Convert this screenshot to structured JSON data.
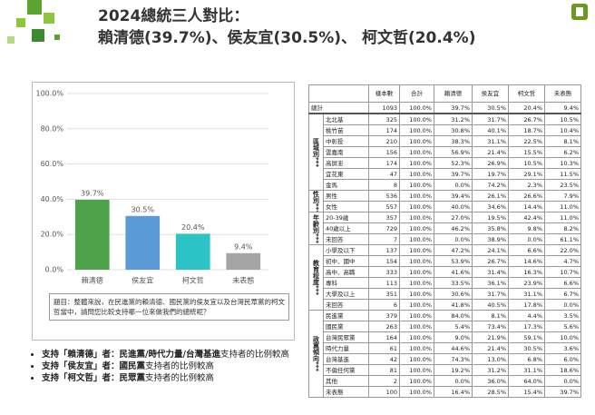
{
  "header": {
    "title_line1": "2024總統三人對比：",
    "title_line2": "賴清德(39.7%)、侯友宜(30.5%)、 柯文哲(20.4%)"
  },
  "chart_data": {
    "type": "bar",
    "categories": [
      "賴清德",
      "侯友宜",
      "柯文哲",
      "未表態"
    ],
    "values": [
      39.7,
      30.5,
      20.4,
      9.4
    ],
    "value_labels": [
      "39.7%",
      "30.5%",
      "20.4%",
      "9.4%"
    ],
    "colors": [
      "#4ea24a",
      "#5b9bd5",
      "#2cc3c6",
      "#a5a5a5"
    ],
    "ylim": [
      0,
      100
    ],
    "yticks": [
      {
        "value": 0,
        "label": "0.0%"
      },
      {
        "value": 20,
        "label": "20.0%"
      },
      {
        "value": 40,
        "label": "40.0%"
      },
      {
        "value": 60,
        "label": "60.0%"
      },
      {
        "value": 80,
        "label": "80.0%"
      },
      {
        "value": 100,
        "label": "100.0%"
      }
    ],
    "grid": true,
    "note": "題目：整體來說，在民進黨的賴清德、國民黨的侯友宜以及台灣民眾黨的柯文哲當中，請問您比較支持哪一位來做我們的總統呢？"
  },
  "table": {
    "columns": [
      "樣本數",
      "合計",
      "賴清德",
      "侯友宜",
      "柯文哲",
      "未表態"
    ],
    "total": {
      "label": "總計",
      "cells": [
        "1093",
        "100.0%",
        "39.7%",
        "30.5%",
        "20.4%",
        "9.4%"
      ]
    },
    "groups": [
      {
        "label": "區域別***",
        "rows": [
          {
            "label": "北北基",
            "cells": [
              "325",
              "100.0%",
              "31.2%",
              "31.7%",
              "26.7%",
              "10.5%"
            ]
          },
          {
            "label": "桃竹苗",
            "cells": [
              "174",
              "100.0%",
              "30.8%",
              "40.1%",
              "18.7%",
              "10.4%"
            ]
          },
          {
            "label": "中彰投",
            "cells": [
              "210",
              "100.0%",
              "38.3%",
              "31.1%",
              "22.5%",
              "8.1%"
            ]
          },
          {
            "label": "雲嘉南",
            "cells": [
              "156",
              "100.0%",
              "56.9%",
              "21.4%",
              "15.5%",
              "6.2%"
            ]
          },
          {
            "label": "高屏澎",
            "cells": [
              "174",
              "100.0%",
              "52.3%",
              "26.9%",
              "10.5%",
              "10.3%"
            ]
          },
          {
            "label": "宜花東",
            "cells": [
              "47",
              "100.0%",
              "39.7%",
              "19.7%",
              "29.1%",
              "11.5%"
            ]
          },
          {
            "label": "金馬",
            "cells": [
              "8",
              "100.0%",
              "0.0%",
              "74.2%",
              "2.3%",
              "23.5%"
            ]
          }
        ]
      },
      {
        "label": "性別***",
        "rows": [
          {
            "label": "男性",
            "cells": [
              "536",
              "100.0%",
              "39.4%",
              "26.1%",
              "26.6%",
              "7.9%"
            ]
          },
          {
            "label": "女性",
            "cells": [
              "557",
              "100.0%",
              "40.0%",
              "34.6%",
              "14.4%",
              "11.0%"
            ]
          }
        ]
      },
      {
        "label": "年齡別***",
        "rows": [
          {
            "label": "20-39歲",
            "cells": [
              "357",
              "100.0%",
              "27.0%",
              "19.5%",
              "42.4%",
              "11.0%"
            ]
          },
          {
            "label": "40歲以上",
            "cells": [
              "729",
              "100.0%",
              "46.2%",
              "35.8%",
              "9.8%",
              "8.2%"
            ]
          },
          {
            "label": "未回答",
            "cells": [
              "7",
              "100.0%",
              "0.0%",
              "38.9%",
              "0.0%",
              "61.1%"
            ]
          }
        ]
      },
      {
        "label": "教育程度***",
        "rows": [
          {
            "label": "小學及以下",
            "cells": [
              "137",
              "100.0%",
              "47.2%",
              "24.1%",
              "6.6%",
              "22.0%"
            ]
          },
          {
            "label": "初中、國中",
            "cells": [
              "154",
              "100.0%",
              "53.9%",
              "26.7%",
              "14.6%",
              "4.7%"
            ]
          },
          {
            "label": "高中、高職",
            "cells": [
              "333",
              "100.0%",
              "41.6%",
              "31.4%",
              "16.3%",
              "10.7%"
            ]
          },
          {
            "label": "專科",
            "cells": [
              "113",
              "100.0%",
              "33.5%",
              "36.1%",
              "23.9%",
              "6.6%"
            ]
          },
          {
            "label": "大學及以上",
            "cells": [
              "351",
              "100.0%",
              "30.6%",
              "31.7%",
              "31.1%",
              "6.7%"
            ]
          },
          {
            "label": "未回答",
            "cells": [
              "6",
              "100.0%",
              "41.8%",
              "40.5%",
              "17.8%",
              "0.0%"
            ]
          }
        ]
      },
      {
        "label": "政黨傾向***",
        "rows": [
          {
            "label": "民進黨",
            "cells": [
              "379",
              "100.0%",
              "84.0%",
              "8.1%",
              "4.4%",
              "3.5%"
            ]
          },
          {
            "label": "國民黨",
            "cells": [
              "263",
              "100.0%",
              "5.4%",
              "73.4%",
              "17.3%",
              "5.6%"
            ]
          },
          {
            "label": "台灣民眾黨",
            "cells": [
              "164",
              "100.0%",
              "9.0%",
              "21.9%",
              "59.1%",
              "10.0%"
            ]
          },
          {
            "label": "時代力量",
            "cells": [
              "61",
              "100.0%",
              "44.6%",
              "21.4%",
              "30.5%",
              "3.6%"
            ]
          },
          {
            "label": "台灣基進",
            "cells": [
              "42",
              "100.0%",
              "74.3%",
              "13.0%",
              "6.8%",
              "6.0%"
            ]
          },
          {
            "label": "不偏任何黨",
            "cells": [
              "81",
              "100.0%",
              "19.2%",
              "31.2%",
              "31.1%",
              "18.6%"
            ]
          },
          {
            "label": "其他",
            "cells": [
              "2",
              "100.0%",
              "0.0%",
              "36.0%",
              "64.0%",
              "0.0%"
            ]
          },
          {
            "label": "未表態",
            "cells": [
              "100",
              "100.0%",
              "16.4%",
              "28.5%",
              "15.4%",
              "39.7%"
            ]
          }
        ]
      }
    ]
  },
  "bullets": [
    {
      "bold": "支持「賴清德」者：民進黨/時代力量/台灣基進",
      "text": "支持者的比例較高"
    },
    {
      "bold": "支持「侯友宜」者：國民黨",
      "text": "支持者的比例較高"
    },
    {
      "bold": "支持「柯文哲」者：民眾黨",
      "text": "支持者的比例較高"
    }
  ]
}
